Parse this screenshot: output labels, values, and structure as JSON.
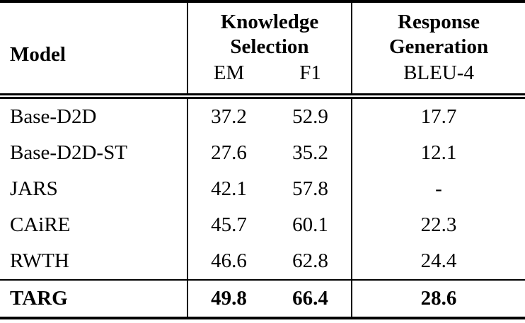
{
  "table": {
    "header": {
      "model_label": "Model",
      "group_knowledge_selection": "Knowledge Selection",
      "group_response_generation": "Response Generation",
      "col_em": "EM",
      "col_f1": "F1",
      "col_bleu": "BLEU-4"
    },
    "rows": [
      {
        "model": "Base-D2D",
        "em": "37.2",
        "f1": "52.9",
        "bleu": "17.7"
      },
      {
        "model": "Base-D2D-ST",
        "em": "27.6",
        "f1": "35.2",
        "bleu": "12.1"
      },
      {
        "model": "JARS",
        "em": "42.1",
        "f1": "57.8",
        "bleu": "-"
      },
      {
        "model": "CAiRE",
        "em": "45.7",
        "f1": "60.1",
        "bleu": "22.3"
      },
      {
        "model": "RWTH",
        "em": "46.6",
        "f1": "62.8",
        "bleu": "24.4"
      }
    ],
    "highlight_row": {
      "model": "TARG",
      "em": "49.8",
      "f1": "66.4",
      "bleu": "28.6"
    },
    "colors": {
      "text": "#000000",
      "background": "#ffffff",
      "rule": "#000000"
    }
  }
}
